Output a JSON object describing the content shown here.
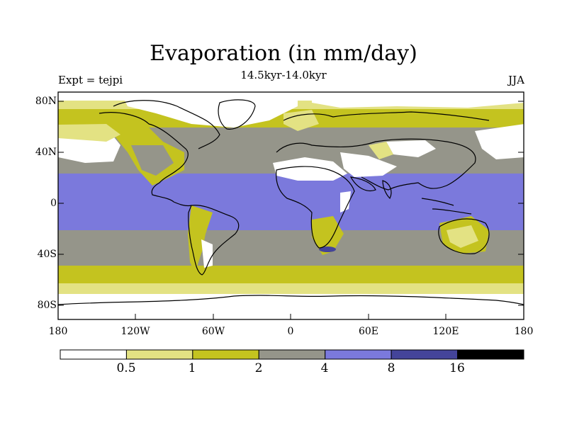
{
  "title": "Evaporation (in mm/day)",
  "subtitle": "14.5kyr-14.0kyr",
  "left_string": "Expt = tejpi",
  "right_string": "JJA",
  "lat_labels": [
    "80N",
    "40N",
    "0",
    "40S",
    "80S"
  ],
  "lon_labels": [
    "180",
    "120W",
    "60W",
    "0",
    "60E",
    "120E",
    "180"
  ],
  "colorbar": {
    "levels": [
      "0.5",
      "1",
      "2",
      "4",
      "8",
      "16"
    ],
    "colors": [
      "#ffffff",
      "#e3e283",
      "#c4c31f",
      "#95958a",
      "#7b79dc",
      "#44449a",
      "#000000"
    ]
  },
  "palette": {
    "land_outline": "#000000",
    "frame": "#000000"
  }
}
